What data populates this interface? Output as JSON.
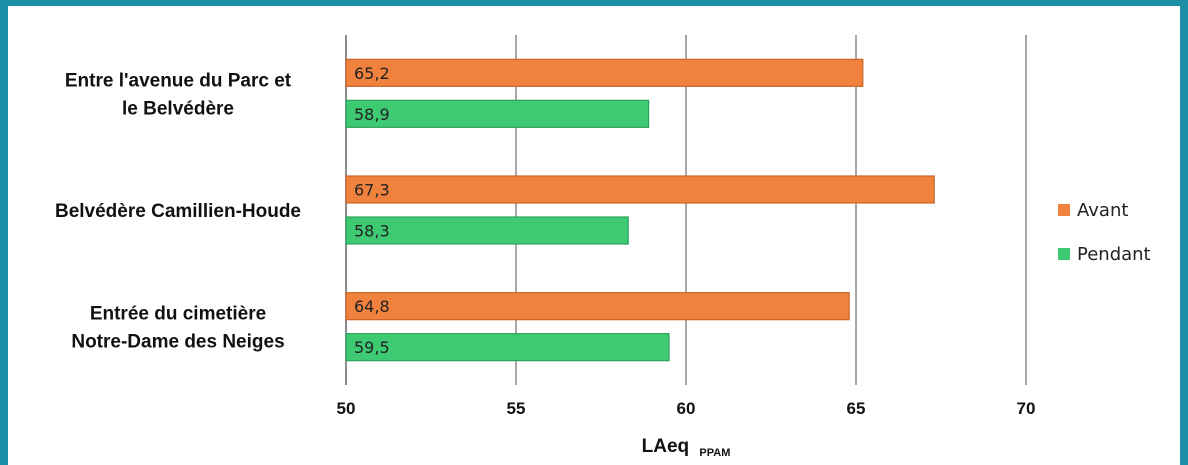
{
  "chart_data": {
    "type": "bar",
    "orientation": "horizontal",
    "categories": [
      [
        "Entre l'avenue du Parc et",
        "le Belvédère"
      ],
      [
        "Belvédère Camillien-Houde"
      ],
      [
        "Entrée du cimetière",
        "Notre-Dame des Neiges"
      ]
    ],
    "series": [
      {
        "name": "Avant",
        "color": "#f0823e",
        "values": [
          65.2,
          67.3,
          64.8
        ],
        "labels": [
          "65,2",
          "67,3",
          "64,8"
        ]
      },
      {
        "name": "Pendant",
        "color": "#3dca73",
        "values": [
          58.9,
          58.3,
          59.5
        ],
        "labels": [
          "58,9",
          "58,3",
          "59,5"
        ]
      }
    ],
    "xlim": [
      50,
      70
    ],
    "xticks": [
      50,
      55,
      60,
      65,
      70
    ],
    "xlabel": "LAeq",
    "xlabel_subscript": "PPAM",
    "ylabel": "",
    "title": "",
    "grid": "vertical",
    "legend_position": "right"
  }
}
